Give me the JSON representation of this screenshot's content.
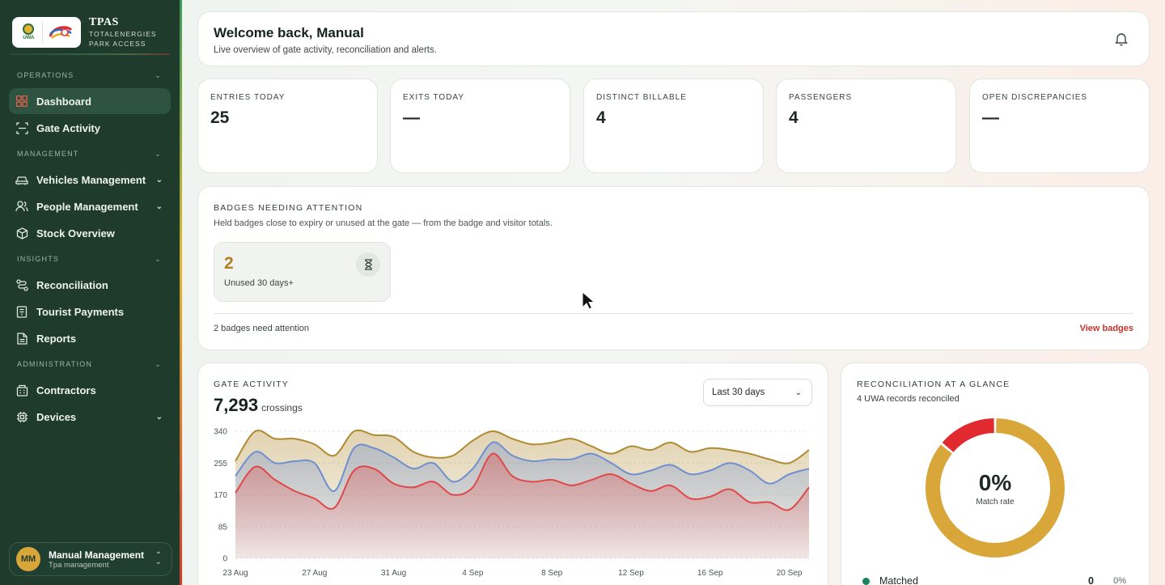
{
  "brand": {
    "title": "TPAS",
    "subtitle_line1": "TOTALENERGIES",
    "subtitle_line2": "PARK ACCESS",
    "uwa_text": "UWA"
  },
  "sidebar": {
    "sections": [
      {
        "label": "OPERATIONS",
        "items": [
          {
            "label": "Dashboard",
            "icon": "grid-icon",
            "active": true
          },
          {
            "label": "Gate Activity",
            "icon": "scan-icon"
          }
        ]
      },
      {
        "label": "MANAGEMENT",
        "items": [
          {
            "label": "Vehicles Management",
            "icon": "car-icon",
            "expandable": true
          },
          {
            "label": "People Management",
            "icon": "users-icon",
            "expandable": true
          },
          {
            "label": "Stock Overview",
            "icon": "box-icon"
          }
        ]
      },
      {
        "label": "INSIGHTS",
        "items": [
          {
            "label": "Reconciliation",
            "icon": "route-icon"
          },
          {
            "label": "Tourist Payments",
            "icon": "receipt-icon"
          },
          {
            "label": "Reports",
            "icon": "file-icon"
          }
        ]
      },
      {
        "label": "ADMINISTRATION",
        "items": [
          {
            "label": "Contractors",
            "icon": "building-icon"
          },
          {
            "label": "Devices",
            "icon": "chip-icon",
            "expandable": true
          }
        ]
      }
    ],
    "user": {
      "initials": "MM",
      "name": "Manual Management",
      "role": "Tpa management"
    }
  },
  "welcome": {
    "title": "Welcome back, Manual",
    "subtitle": "Live overview of gate activity, reconciliation and alerts."
  },
  "stats": [
    {
      "label": "ENTRIES TODAY",
      "value": "25"
    },
    {
      "label": "EXITS TODAY",
      "value": "—"
    },
    {
      "label": "DISTINCT BILLABLE",
      "value": "4"
    },
    {
      "label": "PASSENGERS",
      "value": "4"
    },
    {
      "label": "OPEN DISCREPANCIES",
      "value": "—"
    }
  ],
  "badges": {
    "title": "BADGES NEEDING ATTENTION",
    "subtitle": "Held badges close to expiry or unused at the gate — from the badge and visitor totals.",
    "unused_count": "2",
    "unused_caption": "Unused 30 days+",
    "footer": "2 badges need attention",
    "link": "View badges"
  },
  "gate": {
    "title": "GATE ACTIVITY",
    "total": "7,293",
    "unit": "crossings",
    "range_select": "Last 30 days"
  },
  "recon": {
    "title": "RECONCILIATION AT A GLANCE",
    "subtitle": "4 UWA records reconciled",
    "match_pct": "0%",
    "match_caption": "Match rate",
    "legend": [
      {
        "label": "Matched",
        "count": "0",
        "pct": "0%",
        "color": "#18855a"
      }
    ],
    "donut": {
      "unmatched_fraction": 0.14,
      "other_fraction": 0.86,
      "colors": [
        "#e02a2f",
        "#d9a63a"
      ]
    }
  },
  "chart_data": {
    "type": "area",
    "x": [
      "23 Aug",
      "24 Aug",
      "25 Aug",
      "26 Aug",
      "27 Aug",
      "28 Aug",
      "29 Aug",
      "30 Aug",
      "31 Aug",
      "1 Sep",
      "2 Sep",
      "3 Sep",
      "4 Sep",
      "5 Sep",
      "6 Sep",
      "7 Sep",
      "8 Sep",
      "9 Sep",
      "10 Sep",
      "11 Sep",
      "12 Sep",
      "13 Sep",
      "14 Sep",
      "15 Sep",
      "16 Sep",
      "17 Sep",
      "18 Sep",
      "19 Sep",
      "20 Sep",
      "21 Sep"
    ],
    "x_ticks": [
      "23 Aug",
      "27 Aug",
      "31 Aug",
      "4 Sep",
      "8 Sep",
      "12 Sep",
      "16 Sep",
      "20 Sep"
    ],
    "ylim": [
      0,
      340
    ],
    "y_ticks": [
      "0",
      "85",
      "170",
      "255",
      "340"
    ],
    "series": [
      {
        "values": [
          175,
          245,
          210,
          180,
          160,
          135,
          235,
          240,
          200,
          190,
          205,
          170,
          190,
          280,
          220,
          205,
          210,
          195,
          210,
          225,
          200,
          180,
          195,
          160,
          165,
          185,
          150,
          150,
          130,
          190
        ],
        "color": "#e04848"
      },
      {
        "values": [
          220,
          285,
          255,
          260,
          255,
          180,
          295,
          295,
          270,
          240,
          255,
          205,
          240,
          310,
          275,
          260,
          265,
          265,
          280,
          255,
          225,
          235,
          250,
          225,
          235,
          255,
          235,
          200,
          225,
          240
        ],
        "color": "#6f8fd0"
      },
      {
        "values": [
          260,
          340,
          320,
          320,
          305,
          275,
          340,
          330,
          325,
          285,
          270,
          275,
          315,
          340,
          320,
          305,
          310,
          320,
          300,
          280,
          300,
          290,
          310,
          285,
          295,
          290,
          280,
          265,
          255,
          290
        ],
        "color": "#b08a30"
      }
    ]
  }
}
